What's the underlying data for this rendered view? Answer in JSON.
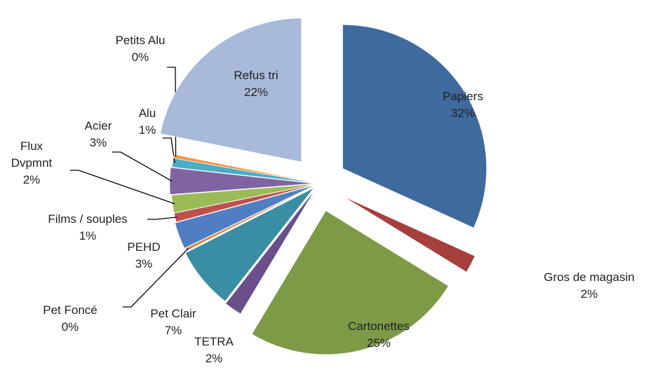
{
  "chart_data": {
    "type": "pie",
    "categories": [
      "Papiers",
      "Gros de magasin",
      "Cartonettes",
      "TETRA",
      "Pet Clair",
      "Pet Foncé",
      "PEHD",
      "Films / souples",
      "Flux Dvpmnt",
      "Acier",
      "Alu",
      "Petits Alu",
      "Refus tri"
    ],
    "values": [
      32,
      2,
      25,
      2,
      7,
      0.3,
      3,
      1,
      2,
      3,
      1,
      0.4,
      22
    ],
    "value_labels": [
      "32%",
      "2%",
      "25%",
      "2%",
      "7%",
      "0%",
      "3%",
      "1%",
      "2%",
      "3%",
      "1%",
      "0%",
      "22%"
    ],
    "colors": [
      "#3f6a9e",
      "#a5403c",
      "#7d9a47",
      "#6a4f8a",
      "#3a8ea3",
      "#d9833a",
      "#4f7fc2",
      "#c0504d",
      "#9bbb59",
      "#8064a2",
      "#4bacc6",
      "#f79646",
      "#a9b9d9"
    ]
  }
}
